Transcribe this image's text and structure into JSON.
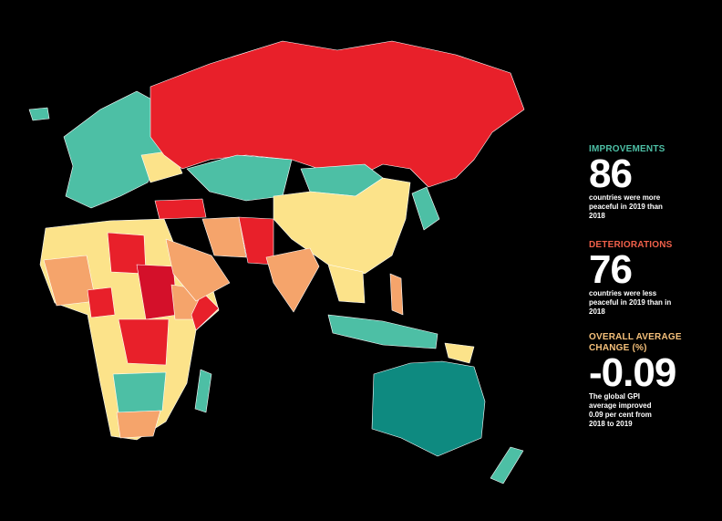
{
  "stats": [
    {
      "heading": "IMPROVEMENTS",
      "number": 86,
      "text": "countries were more peaceful in 2019 than 2018"
    },
    {
      "heading": "DETERIORATIONS",
      "number": 76,
      "text": "countries were less peaceful in 2019 than in 2018"
    },
    {
      "heading": "OVERALL AVERAGE CHANGE (%)",
      "number": -0.09,
      "text": "The global GPI average improved 0.09 per cent from 2018 to 2019"
    }
  ]
}
